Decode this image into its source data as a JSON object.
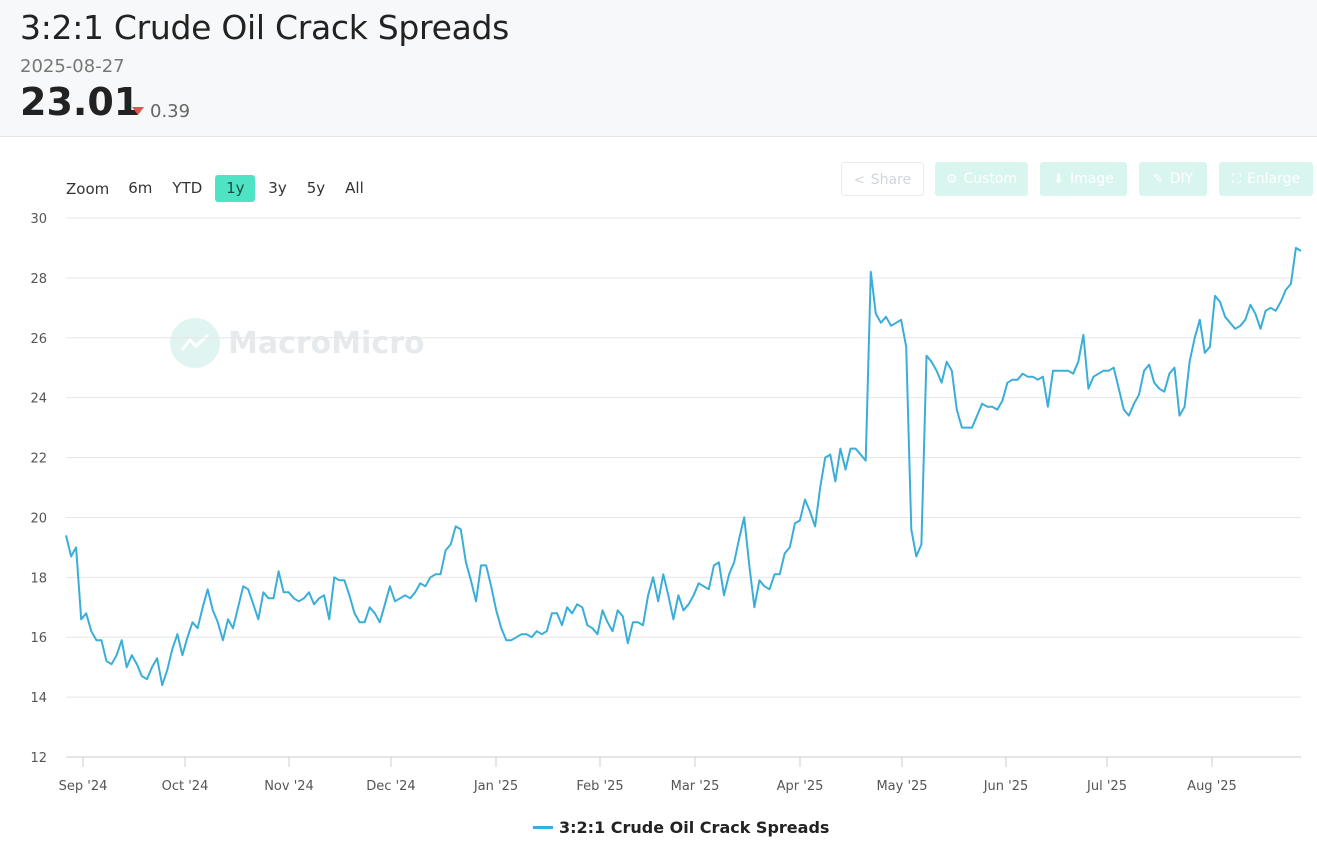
{
  "header": {
    "title": "3:2:1 Crude Oil Crack Spreads",
    "date": "2025-08-27",
    "value": "23.01",
    "change": "0.39",
    "change_direction": "down"
  },
  "zoom": {
    "label": "Zoom",
    "options": [
      "6m",
      "YTD",
      "1y",
      "3y",
      "5y",
      "All"
    ],
    "active": "1y"
  },
  "tools": {
    "share": "Share",
    "custom": "Custom",
    "image": "Image",
    "diy": "DIY",
    "enlarge": "Enlarge"
  },
  "watermark": "MacroMicro",
  "legend": {
    "label": "3:2:1 Crude Oil Crack Spreads",
    "color": "#3aaed8"
  },
  "chart_data": {
    "type": "line",
    "title": "3:2:1 Crude Oil Crack Spreads",
    "ylim": [
      12,
      30
    ],
    "yticks": [
      12,
      14,
      16,
      18,
      20,
      22,
      24,
      26,
      28,
      30
    ],
    "xticks": [
      "Sep '24",
      "Oct '24",
      "Nov '24",
      "Dec '24",
      "Jan '25",
      "Feb '25",
      "Mar '25",
      "Apr '25",
      "May '25",
      "Jun '25",
      "Jul '25",
      "Aug '25"
    ],
    "grid": true,
    "line_color": "#3aaed8",
    "series": [
      {
        "name": "3:2:1 Crude Oil Crack Spreads",
        "points": [
          [
            "2024-08-27",
            19.4
          ],
          [
            "2024-08-28",
            18.7
          ],
          [
            "2024-08-29",
            19.0
          ],
          [
            "2024-08-30",
            16.6
          ],
          [
            "2024-09-03",
            16.8
          ],
          [
            "2024-09-04",
            16.2
          ],
          [
            "2024-09-05",
            15.9
          ],
          [
            "2024-09-06",
            15.9
          ],
          [
            "2024-09-09",
            15.2
          ],
          [
            "2024-09-10",
            15.1
          ],
          [
            "2024-09-11",
            15.4
          ],
          [
            "2024-09-12",
            15.9
          ],
          [
            "2024-09-13",
            15.0
          ],
          [
            "2024-09-16",
            15.4
          ],
          [
            "2024-09-17",
            15.1
          ],
          [
            "2024-09-18",
            14.7
          ],
          [
            "2024-09-19",
            14.6
          ],
          [
            "2024-09-20",
            15.0
          ],
          [
            "2024-09-23",
            15.3
          ],
          [
            "2024-09-24",
            14.4
          ],
          [
            "2024-09-25",
            14.9
          ],
          [
            "2024-09-26",
            15.6
          ],
          [
            "2024-09-27",
            16.1
          ],
          [
            "2024-09-30",
            15.4
          ],
          [
            "2024-10-01",
            16.0
          ],
          [
            "2024-10-02",
            16.5
          ],
          [
            "2024-10-03",
            16.3
          ],
          [
            "2024-10-04",
            17.0
          ],
          [
            "2024-10-07",
            17.6
          ],
          [
            "2024-10-08",
            16.9
          ],
          [
            "2024-10-09",
            16.5
          ],
          [
            "2024-10-10",
            15.9
          ],
          [
            "2024-10-11",
            16.6
          ],
          [
            "2024-10-14",
            16.3
          ],
          [
            "2024-10-15",
            17.0
          ],
          [
            "2024-10-16",
            17.7
          ],
          [
            "2024-10-17",
            17.6
          ],
          [
            "2024-10-18",
            17.1
          ],
          [
            "2024-10-21",
            16.6
          ],
          [
            "2024-10-22",
            17.5
          ],
          [
            "2024-10-23",
            17.3
          ],
          [
            "2024-10-24",
            17.3
          ],
          [
            "2024-10-25",
            18.2
          ],
          [
            "2024-10-28",
            17.5
          ],
          [
            "2024-10-29",
            17.5
          ],
          [
            "2024-10-30",
            17.3
          ],
          [
            "2024-10-31",
            17.2
          ],
          [
            "2024-11-01",
            17.3
          ],
          [
            "2024-11-04",
            17.5
          ],
          [
            "2024-11-05",
            17.1
          ],
          [
            "2024-11-06",
            17.3
          ],
          [
            "2024-11-07",
            17.4
          ],
          [
            "2024-11-08",
            16.6
          ],
          [
            "2024-11-11",
            18.0
          ],
          [
            "2024-11-12",
            17.9
          ],
          [
            "2024-11-13",
            17.9
          ],
          [
            "2024-11-14",
            17.4
          ],
          [
            "2024-11-15",
            16.8
          ],
          [
            "2024-11-18",
            16.5
          ],
          [
            "2024-11-19",
            16.5
          ],
          [
            "2024-11-20",
            17.0
          ],
          [
            "2024-11-21",
            16.8
          ],
          [
            "2024-11-22",
            16.5
          ],
          [
            "2024-11-25",
            17.1
          ],
          [
            "2024-11-26",
            17.7
          ],
          [
            "2024-11-27",
            17.2
          ],
          [
            "2024-11-29",
            17.3
          ],
          [
            "2024-12-02",
            17.4
          ],
          [
            "2024-12-03",
            17.3
          ],
          [
            "2024-12-04",
            17.5
          ],
          [
            "2024-12-05",
            17.8
          ],
          [
            "2024-12-06",
            17.7
          ],
          [
            "2024-12-09",
            18.0
          ],
          [
            "2024-12-10",
            18.1
          ],
          [
            "2024-12-11",
            18.1
          ],
          [
            "2024-12-12",
            18.9
          ],
          [
            "2024-12-13",
            19.1
          ],
          [
            "2024-12-16",
            19.7
          ],
          [
            "2024-12-17",
            19.6
          ],
          [
            "2024-12-18",
            18.5
          ],
          [
            "2024-12-19",
            17.9
          ],
          [
            "2024-12-20",
            17.2
          ],
          [
            "2024-12-23",
            18.4
          ],
          [
            "2024-12-24",
            18.4
          ],
          [
            "2024-12-26",
            17.7
          ],
          [
            "2024-12-27",
            16.9
          ],
          [
            "2024-12-30",
            16.3
          ],
          [
            "2024-12-31",
            15.9
          ],
          [
            "2025-01-02",
            15.9
          ],
          [
            "2025-01-03",
            16.0
          ],
          [
            "2025-01-06",
            16.1
          ],
          [
            "2025-01-07",
            16.1
          ],
          [
            "2025-01-08",
            16.0
          ],
          [
            "2025-01-09",
            16.2
          ],
          [
            "2025-01-10",
            16.1
          ],
          [
            "2025-01-13",
            16.2
          ],
          [
            "2025-01-14",
            16.8
          ],
          [
            "2025-01-15",
            16.8
          ],
          [
            "2025-01-16",
            16.4
          ],
          [
            "2025-01-17",
            17.0
          ],
          [
            "2025-01-20",
            16.8
          ],
          [
            "2025-01-21",
            17.1
          ],
          [
            "2025-01-22",
            17.0
          ],
          [
            "2025-01-23",
            16.4
          ],
          [
            "2025-01-24",
            16.3
          ],
          [
            "2025-01-27",
            16.1
          ],
          [
            "2025-01-28",
            16.9
          ],
          [
            "2025-01-29",
            16.5
          ],
          [
            "2025-01-30",
            16.2
          ],
          [
            "2025-01-31",
            16.9
          ],
          [
            "2025-02-03",
            16.7
          ],
          [
            "2025-02-04",
            15.8
          ],
          [
            "2025-02-05",
            16.5
          ],
          [
            "2025-02-06",
            16.5
          ],
          [
            "2025-02-07",
            16.4
          ],
          [
            "2025-02-10",
            17.4
          ],
          [
            "2025-02-11",
            18.0
          ],
          [
            "2025-02-12",
            17.2
          ],
          [
            "2025-02-13",
            18.1
          ],
          [
            "2025-02-14",
            17.4
          ],
          [
            "2025-02-17",
            16.6
          ],
          [
            "2025-02-18",
            17.4
          ],
          [
            "2025-02-19",
            16.9
          ],
          [
            "2025-02-20",
            17.1
          ],
          [
            "2025-02-21",
            17.4
          ],
          [
            "2025-02-24",
            17.8
          ],
          [
            "2025-02-25",
            17.7
          ],
          [
            "2025-02-26",
            17.6
          ],
          [
            "2025-02-27",
            18.4
          ],
          [
            "2025-02-28",
            18.5
          ],
          [
            "2025-03-03",
            17.4
          ],
          [
            "2025-03-04",
            18.1
          ],
          [
            "2025-03-05",
            18.5
          ],
          [
            "2025-03-06",
            19.3
          ],
          [
            "2025-03-07",
            20.0
          ],
          [
            "2025-03-10",
            18.4
          ],
          [
            "2025-03-11",
            17.0
          ],
          [
            "2025-03-12",
            17.9
          ],
          [
            "2025-03-13",
            17.7
          ],
          [
            "2025-03-14",
            17.6
          ],
          [
            "2025-03-17",
            18.1
          ],
          [
            "2025-03-18",
            18.1
          ],
          [
            "2025-03-19",
            18.8
          ],
          [
            "2025-03-20",
            19.0
          ],
          [
            "2025-03-21",
            19.8
          ],
          [
            "2025-03-24",
            19.9
          ],
          [
            "2025-03-25",
            20.6
          ],
          [
            "2025-03-26",
            20.2
          ],
          [
            "2025-03-27",
            19.7
          ],
          [
            "2025-03-28",
            21.0
          ],
          [
            "2025-03-31",
            22.0
          ],
          [
            "2025-04-01",
            22.1
          ],
          [
            "2025-04-02",
            21.2
          ],
          [
            "2025-04-03",
            22.3
          ],
          [
            "2025-04-04",
            21.6
          ],
          [
            "2025-04-07",
            22.3
          ],
          [
            "2025-04-08",
            22.3
          ],
          [
            "2025-04-09",
            22.1
          ],
          [
            "2025-04-10",
            21.9
          ],
          [
            "2025-04-11",
            28.2
          ],
          [
            "2025-04-14",
            26.8
          ],
          [
            "2025-04-15",
            26.5
          ],
          [
            "2025-04-16",
            26.7
          ],
          [
            "2025-04-17",
            26.4
          ],
          [
            "2025-04-18",
            26.5
          ],
          [
            "2025-04-21",
            26.6
          ],
          [
            "2025-04-22",
            25.7
          ],
          [
            "2025-04-23",
            19.6
          ],
          [
            "2025-04-24",
            18.7
          ],
          [
            "2025-04-25",
            19.1
          ],
          [
            "2025-04-28",
            25.4
          ],
          [
            "2025-04-29",
            25.2
          ],
          [
            "2025-04-30",
            24.9
          ],
          [
            "2025-05-01",
            24.5
          ],
          [
            "2025-05-02",
            25.2
          ],
          [
            "2025-05-05",
            24.9
          ],
          [
            "2025-05-06",
            23.6
          ],
          [
            "2025-05-07",
            23.0
          ],
          [
            "2025-05-08",
            23.0
          ],
          [
            "2025-05-09",
            23.0
          ],
          [
            "2025-05-12",
            23.4
          ],
          [
            "2025-05-13",
            23.8
          ],
          [
            "2025-05-14",
            23.7
          ],
          [
            "2025-05-15",
            23.7
          ],
          [
            "2025-05-16",
            23.6
          ],
          [
            "2025-05-19",
            23.9
          ],
          [
            "2025-05-20",
            24.5
          ],
          [
            "2025-05-21",
            24.6
          ],
          [
            "2025-05-22",
            24.6
          ],
          [
            "2025-05-23",
            24.8
          ],
          [
            "2025-05-26",
            24.7
          ],
          [
            "2025-05-27",
            24.7
          ],
          [
            "2025-05-28",
            24.6
          ],
          [
            "2025-05-29",
            24.7
          ],
          [
            "2025-05-30",
            23.7
          ],
          [
            "2025-06-02",
            24.9
          ],
          [
            "2025-06-03",
            24.9
          ],
          [
            "2025-06-04",
            24.9
          ],
          [
            "2025-06-05",
            24.9
          ],
          [
            "2025-06-06",
            24.8
          ],
          [
            "2025-06-09",
            25.2
          ],
          [
            "2025-06-10",
            26.1
          ],
          [
            "2025-06-11",
            24.3
          ],
          [
            "2025-06-12",
            24.7
          ],
          [
            "2025-06-13",
            24.8
          ],
          [
            "2025-06-16",
            24.9
          ],
          [
            "2025-06-17",
            24.9
          ],
          [
            "2025-06-18",
            25.0
          ],
          [
            "2025-06-19",
            24.3
          ],
          [
            "2025-06-20",
            23.6
          ],
          [
            "2025-06-23",
            23.4
          ],
          [
            "2025-06-24",
            23.8
          ],
          [
            "2025-06-25",
            24.1
          ],
          [
            "2025-06-26",
            24.9
          ],
          [
            "2025-06-27",
            25.1
          ],
          [
            "2025-06-30",
            24.5
          ],
          [
            "2025-07-01",
            24.3
          ],
          [
            "2025-07-02",
            24.2
          ],
          [
            "2025-07-03",
            24.8
          ],
          [
            "2025-07-04",
            25.0
          ],
          [
            "2025-07-07",
            23.4
          ],
          [
            "2025-07-08",
            23.7
          ],
          [
            "2025-07-09",
            25.2
          ],
          [
            "2025-07-10",
            26.0
          ],
          [
            "2025-07-11",
            26.6
          ],
          [
            "2025-07-14",
            25.5
          ],
          [
            "2025-07-15",
            25.7
          ],
          [
            "2025-07-16",
            27.4
          ],
          [
            "2025-07-17",
            27.2
          ],
          [
            "2025-07-18",
            26.7
          ],
          [
            "2025-07-21",
            26.5
          ],
          [
            "2025-07-22",
            26.3
          ],
          [
            "2025-07-23",
            26.4
          ],
          [
            "2025-07-24",
            26.6
          ],
          [
            "2025-07-25",
            27.1
          ],
          [
            "2025-07-28",
            26.8
          ],
          [
            "2025-07-29",
            26.3
          ],
          [
            "2025-07-30",
            26.9
          ],
          [
            "2025-07-31",
            27.0
          ],
          [
            "2025-08-01",
            26.9
          ],
          [
            "2025-08-04",
            27.2
          ],
          [
            "2025-08-05",
            27.6
          ],
          [
            "2025-08-06",
            27.8
          ],
          [
            "2025-08-07",
            29.0
          ],
          [
            "2025-08-08",
            28.9
          ]
        ]
      }
    ]
  }
}
